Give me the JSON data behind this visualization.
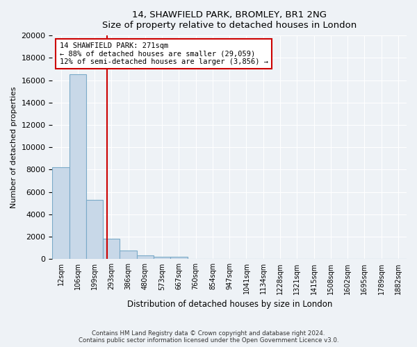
{
  "title": "14, SHAWFIELD PARK, BROMLEY, BR1 2NG",
  "subtitle": "Size of property relative to detached houses in London",
  "xlabel": "Distribution of detached houses by size in London",
  "ylabel": "Number of detached properties",
  "bin_labels": [
    "12sqm",
    "106sqm",
    "199sqm",
    "293sqm",
    "386sqm",
    "480sqm",
    "573sqm",
    "667sqm",
    "760sqm",
    "854sqm",
    "947sqm",
    "1041sqm",
    "1134sqm",
    "1228sqm",
    "1321sqm",
    "1415sqm",
    "1508sqm",
    "1602sqm",
    "1695sqm",
    "1789sqm",
    "1882sqm"
  ],
  "bin_values": [
    8200,
    16500,
    5300,
    1800,
    750,
    300,
    200,
    200,
    0,
    0,
    0,
    0,
    0,
    0,
    0,
    0,
    0,
    0,
    0,
    0,
    0
  ],
  "bar_color": "#c8d8e8",
  "bar_edge_color": "#7aaac8",
  "property_line_x": 2.72,
  "property_line_color": "#cc0000",
  "annotation_line1": "14 SHAWFIELD PARK: 271sqm",
  "annotation_line2": "← 88% of detached houses are smaller (29,059)",
  "annotation_line3": "12% of semi-detached houses are larger (3,856) →",
  "annotation_box_color": "#ffffff",
  "annotation_box_edge_color": "#cc0000",
  "ylim": [
    0,
    20000
  ],
  "yticks": [
    0,
    2000,
    4000,
    6000,
    8000,
    10000,
    12000,
    14000,
    16000,
    18000,
    20000
  ],
  "footnote1": "Contains HM Land Registry data © Crown copyright and database right 2024.",
  "footnote2": "Contains public sector information licensed under the Open Government Licence v3.0.",
  "background_color": "#eef2f6",
  "plot_bg_color": "#eef2f6"
}
